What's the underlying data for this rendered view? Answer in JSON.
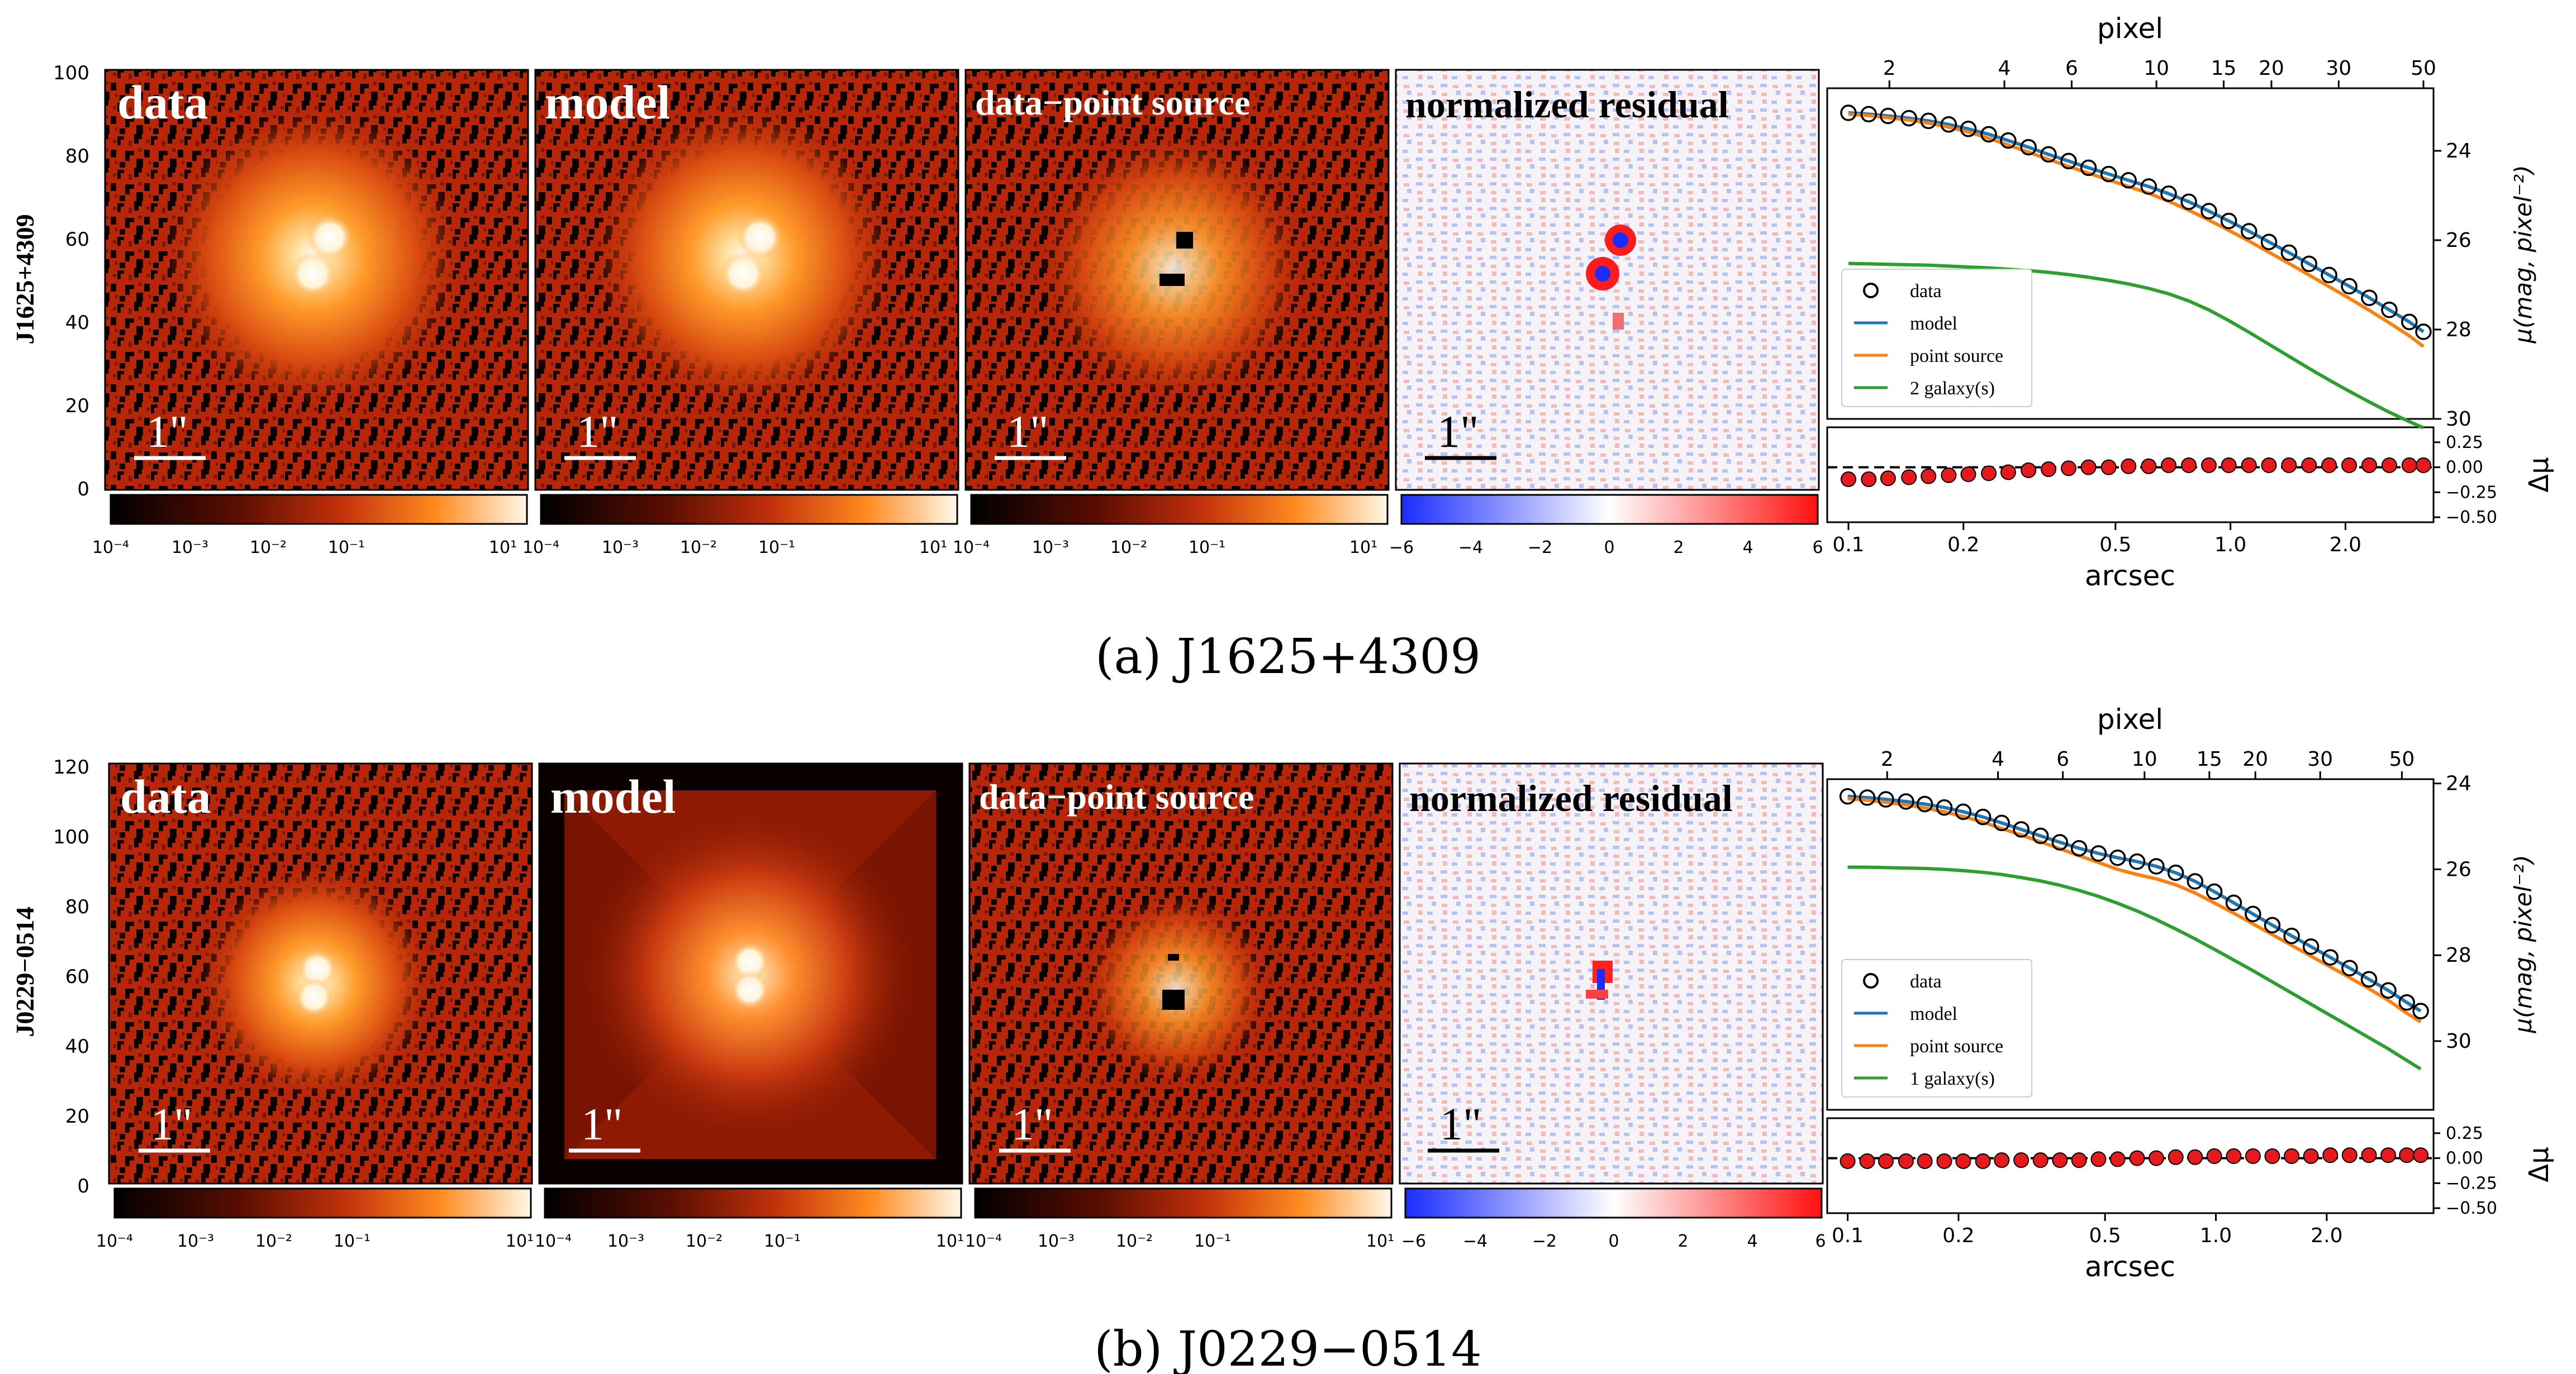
{
  "figures": [
    {
      "caption": "(a) J1625+4309",
      "object_name": "J1625+4309",
      "panels": {
        "data_label": "data",
        "model_label": "model",
        "ps_subtracted_label": "data−point source",
        "residual_label": "normalized residual",
        "scale_bar": "1\"",
        "y_ticks": [
          "100",
          "80",
          "60",
          "40",
          "20",
          "0"
        ]
      },
      "colorbars": {
        "log": [
          "10⁻⁴",
          "10⁻³",
          "10⁻²",
          "10⁻¹",
          "10¹"
        ],
        "residual": [
          "−6",
          "−4",
          "−2",
          "0",
          "2",
          "4",
          "6"
        ]
      }
    },
    {
      "caption": "(b) J0229−0514",
      "object_name": "J0229−0514",
      "panels": {
        "data_label": "data",
        "model_label": "model",
        "ps_subtracted_label": "data−point source",
        "residual_label": "normalized residual",
        "scale_bar": "1\"",
        "y_ticks": [
          "120",
          "100",
          "80",
          "60",
          "40",
          "20",
          "0"
        ]
      },
      "colorbars": {
        "log": [
          "10⁻⁴",
          "10⁻³",
          "10⁻²",
          "10⁻¹",
          "10¹"
        ],
        "residual": [
          "−6",
          "−4",
          "−2",
          "0",
          "2",
          "4",
          "6"
        ]
      }
    }
  ],
  "chart_data": [
    {
      "type": "line",
      "title": "",
      "top_xlabel": "pixel",
      "top_xticks": [
        "2",
        "4",
        "6",
        "10",
        "15",
        "20",
        "30",
        "50"
      ],
      "top_xtick_values": [
        2,
        4,
        6,
        10,
        15,
        20,
        30,
        50
      ],
      "xlabel": "arcsec",
      "xscale": "log",
      "xticks": [
        "0.1",
        "0.2",
        "0.5",
        "1.0",
        "2.0"
      ],
      "xtick_values": [
        0.1,
        0.2,
        0.5,
        1.0,
        2.0
      ],
      "xlim": [
        0.088,
        3.4
      ],
      "ylabel": "μ(mag, pixel⁻²)",
      "yticks": [
        "24",
        "26",
        "28",
        "30"
      ],
      "ylim": [
        30.0,
        22.6
      ],
      "legend": [
        "data",
        "model",
        "point source",
        "2 galaxy(s)"
      ],
      "legend_loc": "lower-left",
      "x": [
        0.1,
        0.113,
        0.127,
        0.144,
        0.162,
        0.183,
        0.206,
        0.233,
        0.262,
        0.296,
        0.334,
        0.377,
        0.425,
        0.48,
        0.541,
        0.611,
        0.689,
        0.778,
        0.878,
        0.99,
        1.118,
        1.261,
        1.423,
        1.606,
        1.812,
        2.045,
        2.308,
        2.605,
        2.939,
        3.2
      ],
      "series": [
        {
          "name": "data",
          "style": "circle",
          "values": [
            23.15,
            23.18,
            23.22,
            23.27,
            23.33,
            23.41,
            23.51,
            23.63,
            23.77,
            23.92,
            24.08,
            24.23,
            24.38,
            24.52,
            24.66,
            24.8,
            24.96,
            25.14,
            25.35,
            25.57,
            25.8,
            26.04,
            26.28,
            26.53,
            26.78,
            27.03,
            27.29,
            27.56,
            27.83,
            28.05
          ]
        },
        {
          "name": "model",
          "style": "line",
          "values": [
            23.15,
            23.18,
            23.22,
            23.27,
            23.33,
            23.41,
            23.51,
            23.63,
            23.77,
            23.92,
            24.08,
            24.23,
            24.38,
            24.52,
            24.66,
            24.8,
            24.96,
            25.14,
            25.35,
            25.57,
            25.8,
            26.04,
            26.28,
            26.53,
            26.78,
            27.03,
            27.29,
            27.56,
            27.83,
            28.05
          ]
        },
        {
          "name": "point source",
          "style": "line",
          "values": [
            23.18,
            23.21,
            23.26,
            23.31,
            23.38,
            23.47,
            23.58,
            23.72,
            23.87,
            24.03,
            24.19,
            24.35,
            24.5,
            24.65,
            24.8,
            24.95,
            25.13,
            25.33,
            25.55,
            25.78,
            26.02,
            26.27,
            26.52,
            26.78,
            27.04,
            27.3,
            27.57,
            27.85,
            28.14,
            28.38
          ]
        },
        {
          "name": "2 galaxy(s)",
          "style": "line",
          "values": [
            26.52,
            26.53,
            26.54,
            26.55,
            26.56,
            26.58,
            26.6,
            26.62,
            26.65,
            26.68,
            26.72,
            26.77,
            26.83,
            26.9,
            26.98,
            27.08,
            27.2,
            27.36,
            27.56,
            27.8,
            28.06,
            28.33,
            28.6,
            28.87,
            29.13,
            29.38,
            29.62,
            29.85,
            30.06,
            30.2
          ]
        }
      ],
      "residual": {
        "ylabel": "Δμ",
        "yticks": [
          "0.25",
          "0.00",
          "−0.25",
          "−0.50"
        ],
        "ytick_values": [
          0.25,
          0.0,
          -0.25,
          -0.5
        ],
        "ylim": [
          -0.55,
          0.4
        ],
        "values": [
          -0.12,
          -0.12,
          -0.11,
          -0.1,
          -0.09,
          -0.08,
          -0.07,
          -0.06,
          -0.05,
          -0.03,
          -0.02,
          -0.01,
          0.0,
          0.0,
          0.01,
          0.01,
          0.02,
          0.02,
          0.02,
          0.02,
          0.02,
          0.02,
          0.02,
          0.02,
          0.02,
          0.02,
          0.02,
          0.02,
          0.02,
          0.02
        ]
      }
    },
    {
      "type": "line",
      "title": "",
      "top_xlabel": "pixel",
      "top_xticks": [
        "2",
        "4",
        "6",
        "10",
        "15",
        "20",
        "30",
        "50"
      ],
      "top_xtick_values": [
        2,
        4,
        6,
        10,
        15,
        20,
        30,
        50
      ],
      "xlabel": "arcsec",
      "xscale": "log",
      "xticks": [
        "0.1",
        "0.2",
        "0.5",
        "1.0",
        "2.0"
      ],
      "xtick_values": [
        0.1,
        0.2,
        0.5,
        1.0,
        2.0
      ],
      "xlim": [
        0.088,
        3.9
      ],
      "ylabel": "μ(mag, pixel⁻²)",
      "yticks": [
        "24",
        "26",
        "28",
        "30"
      ],
      "ylim": [
        31.6,
        23.9
      ],
      "legend": [
        "data",
        "model",
        "point source",
        "1 galaxy(s)"
      ],
      "legend_loc": "lower-left",
      "x": [
        0.1,
        0.113,
        0.127,
        0.144,
        0.162,
        0.183,
        0.206,
        0.233,
        0.262,
        0.296,
        0.334,
        0.377,
        0.425,
        0.48,
        0.541,
        0.611,
        0.689,
        0.778,
        0.878,
        0.99,
        1.118,
        1.261,
        1.423,
        1.606,
        1.812,
        2.045,
        2.308,
        2.605,
        2.939,
        3.3,
        3.6
      ],
      "series": [
        {
          "name": "data",
          "style": "circle",
          "values": [
            24.3,
            24.33,
            24.37,
            24.42,
            24.48,
            24.56,
            24.66,
            24.78,
            24.92,
            25.07,
            25.22,
            25.37,
            25.51,
            25.63,
            25.73,
            25.82,
            25.93,
            26.08,
            26.28,
            26.52,
            26.78,
            27.04,
            27.3,
            27.55,
            27.8,
            28.05,
            28.3,
            28.56,
            28.82,
            29.1,
            29.3
          ]
        },
        {
          "name": "model",
          "style": "line",
          "values": [
            24.3,
            24.33,
            24.37,
            24.42,
            24.48,
            24.56,
            24.66,
            24.78,
            24.92,
            25.07,
            25.22,
            25.37,
            25.51,
            25.63,
            25.73,
            25.82,
            25.93,
            26.08,
            26.28,
            26.52,
            26.78,
            27.04,
            27.3,
            27.55,
            27.8,
            28.05,
            28.3,
            28.56,
            28.82,
            29.1,
            29.3
          ]
        },
        {
          "name": "point source",
          "style": "line",
          "values": [
            24.35,
            24.39,
            24.44,
            24.5,
            24.57,
            24.66,
            24.77,
            24.9,
            25.05,
            25.2,
            25.36,
            25.52,
            25.68,
            25.84,
            26.0,
            26.12,
            26.22,
            26.36,
            26.55,
            26.78,
            27.02,
            27.27,
            27.52,
            27.77,
            28.02,
            28.27,
            28.52,
            28.78,
            29.05,
            29.35,
            29.55
          ]
        },
        {
          "name": "1 galaxy(s)",
          "style": "line",
          "values": [
            25.95,
            25.95,
            25.96,
            25.97,
            25.98,
            26.0,
            26.03,
            26.07,
            26.12,
            26.19,
            26.27,
            26.37,
            26.49,
            26.63,
            26.79,
            26.97,
            27.17,
            27.39,
            27.62,
            27.86,
            28.11,
            28.36,
            28.62,
            28.88,
            29.14,
            29.4,
            29.66,
            29.92,
            30.18,
            30.45,
            30.65
          ]
        }
      ],
      "residual": {
        "ylabel": "Δμ",
        "yticks": [
          "0.25",
          "0.00",
          "−0.25",
          "−0.50"
        ],
        "ytick_values": [
          0.25,
          0.0,
          -0.25,
          -0.5
        ],
        "ylim": [
          -0.55,
          0.4
        ],
        "values": [
          -0.03,
          -0.03,
          -0.03,
          -0.03,
          -0.03,
          -0.03,
          -0.03,
          -0.03,
          -0.02,
          -0.02,
          -0.02,
          -0.02,
          -0.02,
          -0.01,
          -0.01,
          0.0,
          0.0,
          0.01,
          0.01,
          0.02,
          0.02,
          0.02,
          0.02,
          0.02,
          0.02,
          0.03,
          0.03,
          0.03,
          0.03,
          0.03,
          0.03
        ]
      }
    }
  ]
}
